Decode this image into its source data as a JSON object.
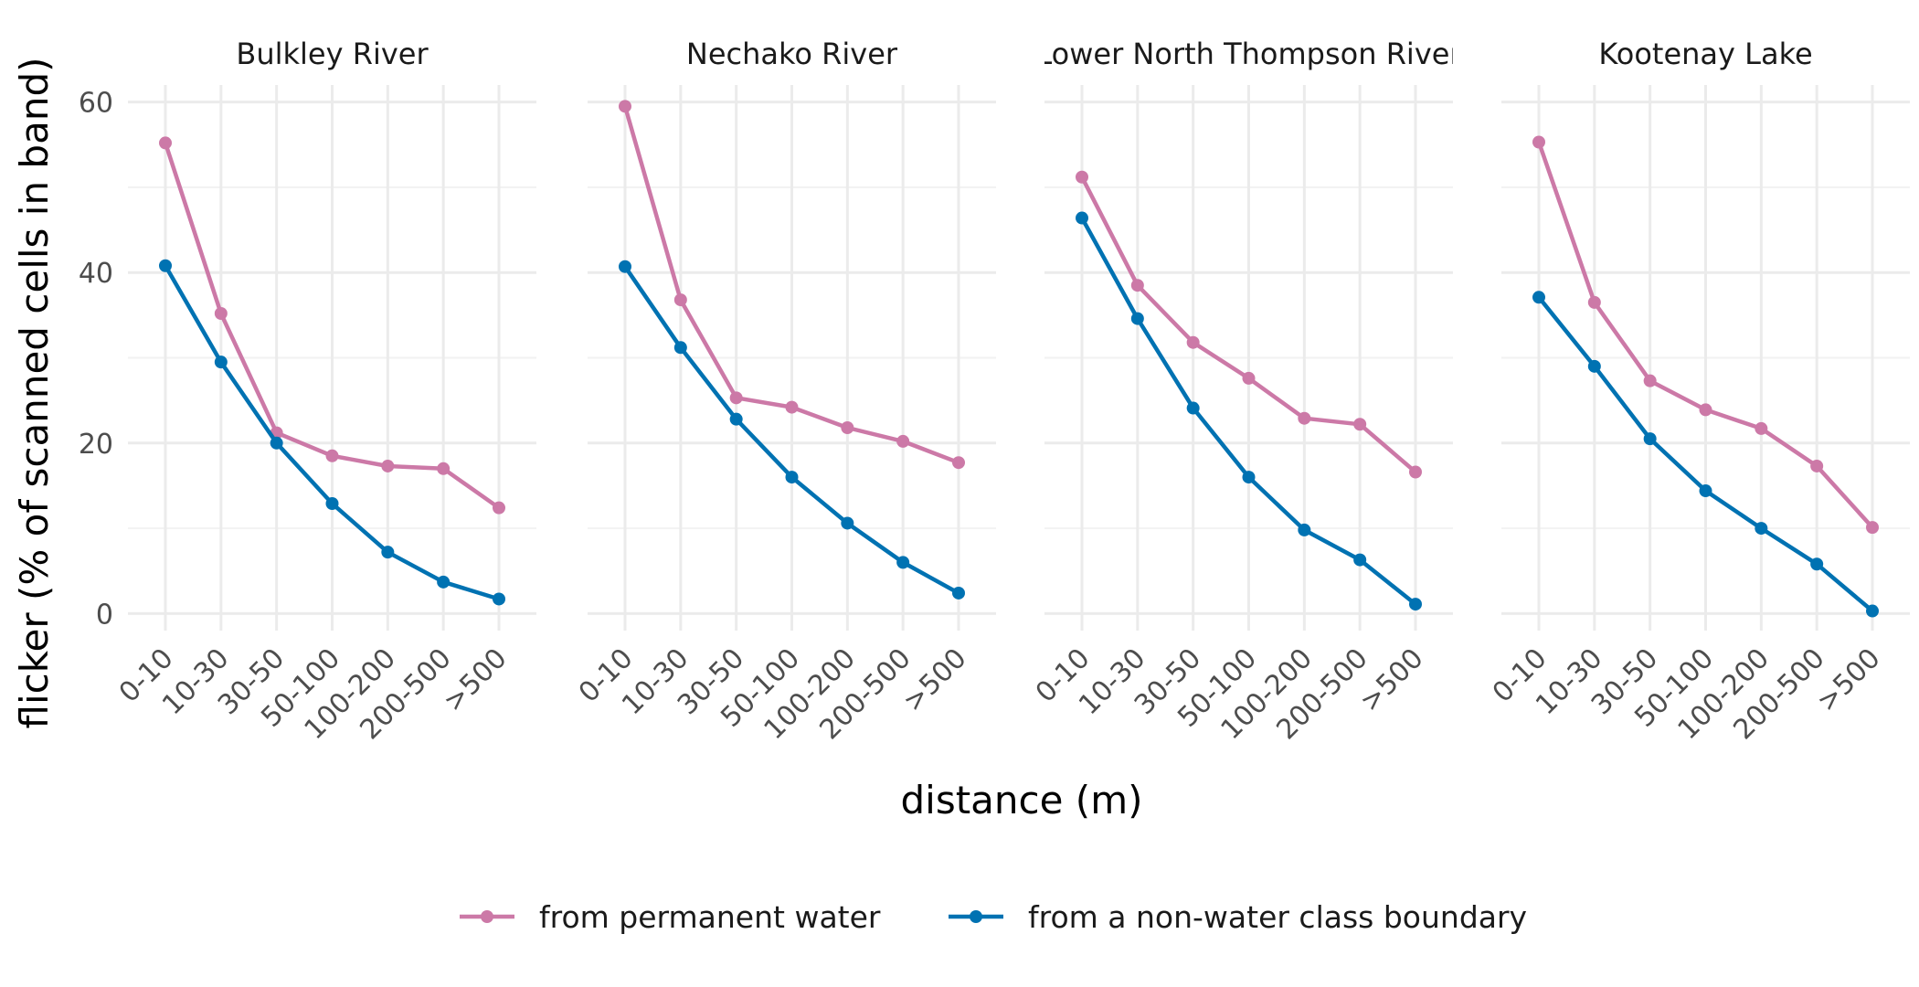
{
  "chart_data": {
    "type": "line",
    "xlabel": "distance (m)",
    "ylabel": "flicker (% of scanned cells in band)",
    "ylim": [
      -2,
      62
    ],
    "yticks": [
      0,
      20,
      40,
      60
    ],
    "grid": true,
    "legend": "bottom",
    "categories": [
      "0-10",
      "10-30",
      "30-50",
      "50-100",
      "100-200",
      "200-500",
      ">500"
    ],
    "series_meta": [
      {
        "name": "from permanent water",
        "color": "#CC79A7"
      },
      {
        "name": "from a non-water class boundary",
        "color": "#0072B2"
      }
    ],
    "panels": [
      {
        "title": "Bulkley River",
        "series": [
          {
            "name": "from permanent water",
            "values": [
              55.2,
              35.2,
              21.2,
              18.5,
              17.3,
              17.0,
              12.4
            ]
          },
          {
            "name": "from a non-water class boundary",
            "values": [
              40.8,
              29.5,
              20.0,
              12.9,
              7.2,
              3.7,
              1.7
            ]
          }
        ]
      },
      {
        "title": "Nechako River",
        "series": [
          {
            "name": "from permanent water",
            "values": [
              59.5,
              36.8,
              25.3,
              24.2,
              21.8,
              20.2,
              17.7
            ]
          },
          {
            "name": "from a non-water class boundary",
            "values": [
              40.7,
              31.2,
              22.8,
              16.0,
              10.6,
              6.0,
              2.4
            ]
          }
        ]
      },
      {
        "title": "Lower North Thompson River",
        "series": [
          {
            "name": "from permanent water",
            "values": [
              51.2,
              38.5,
              31.8,
              27.6,
              22.9,
              22.2,
              16.6
            ]
          },
          {
            "name": "from a non-water class boundary",
            "values": [
              46.4,
              34.6,
              24.1,
              16.0,
              9.8,
              6.3,
              1.1
            ]
          }
        ]
      },
      {
        "title": "Kootenay Lake",
        "series": [
          {
            "name": "from permanent water",
            "values": [
              55.3,
              36.5,
              27.3,
              23.9,
              21.7,
              17.3,
              10.1
            ]
          },
          {
            "name": "from a non-water class boundary",
            "values": [
              37.1,
              29.0,
              20.5,
              14.4,
              10.0,
              5.8,
              0.3
            ]
          }
        ]
      }
    ]
  }
}
